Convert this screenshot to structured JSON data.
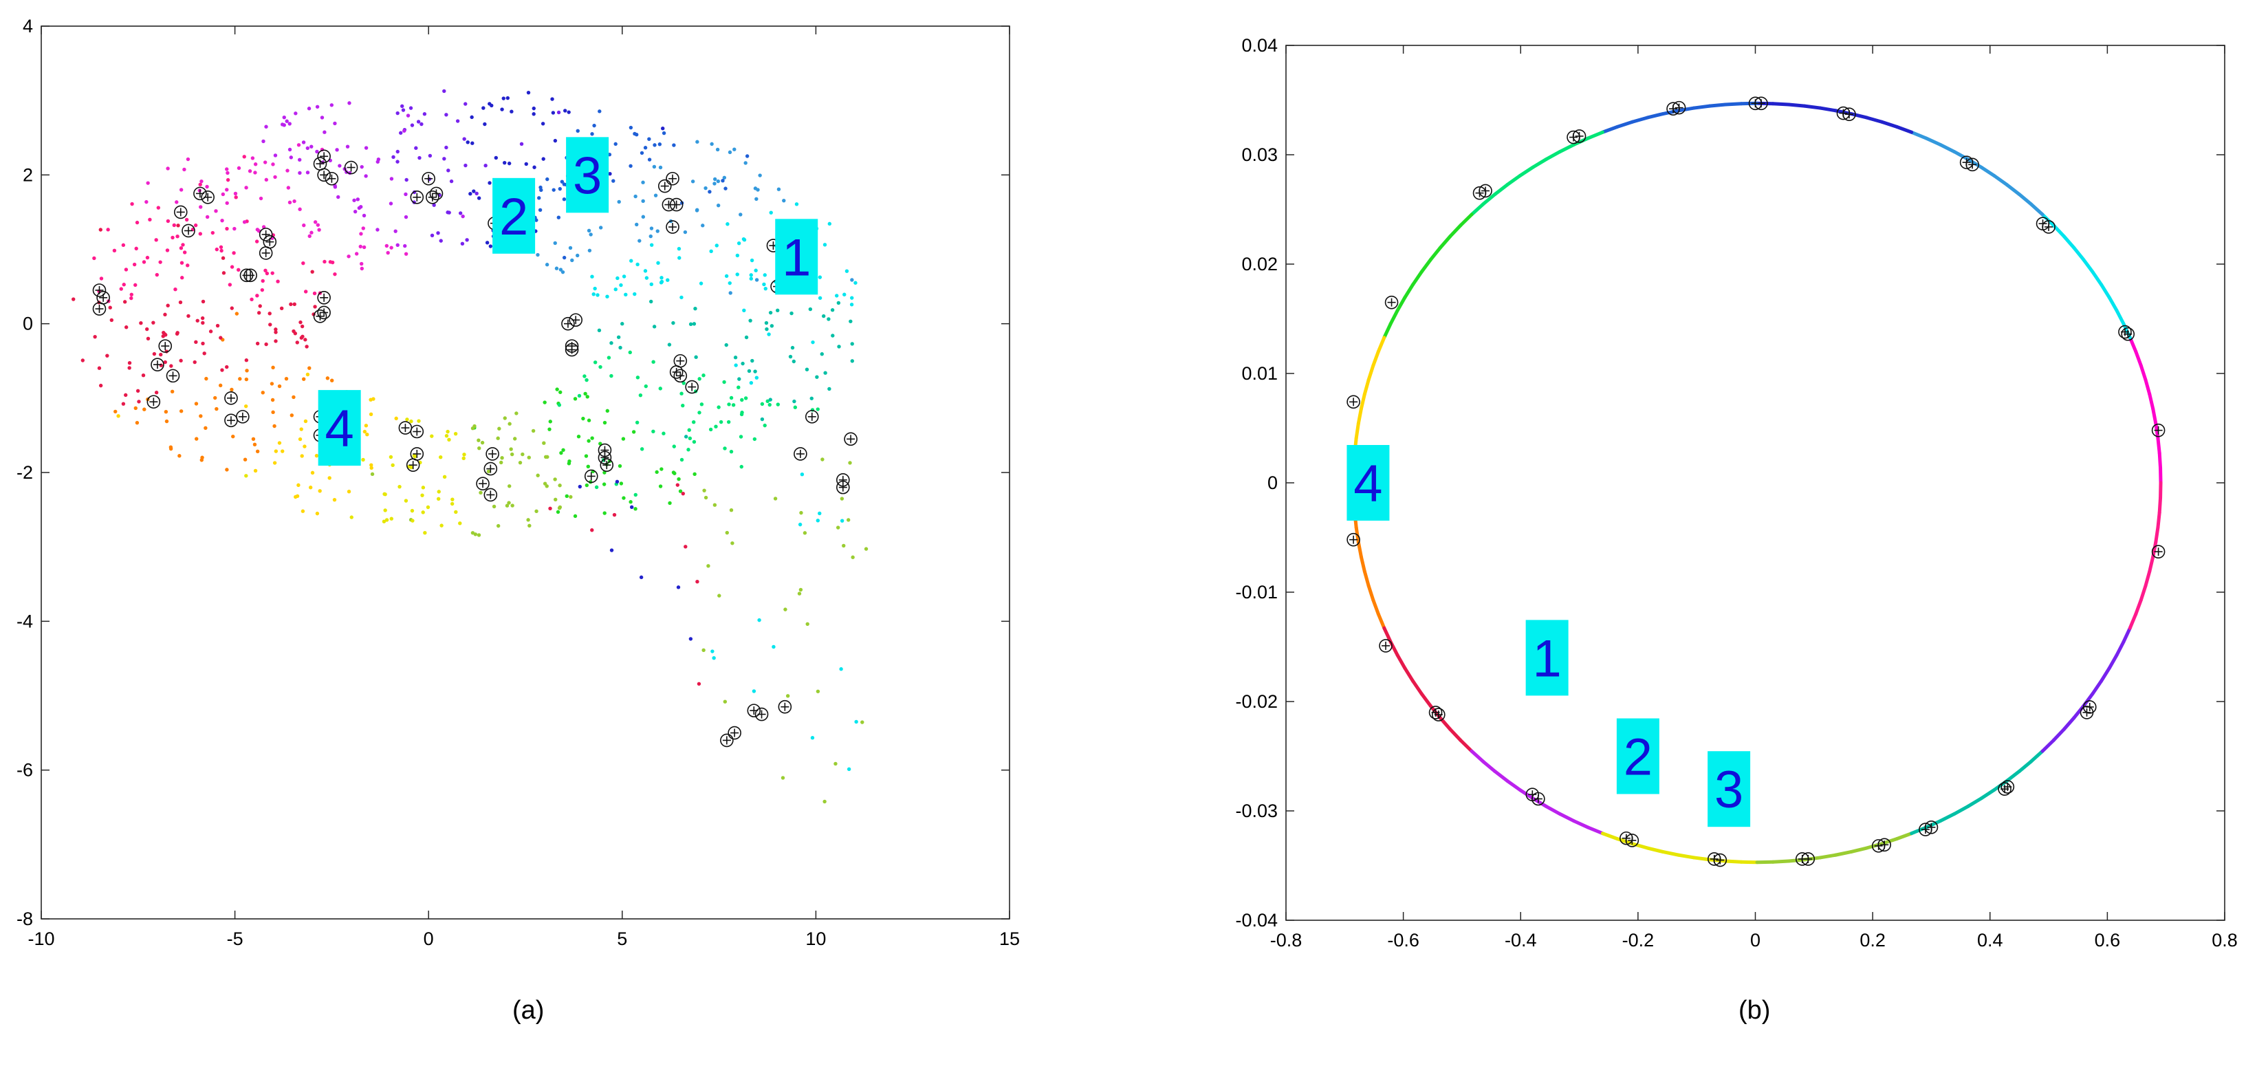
{
  "chart_data": [
    {
      "type": "scatter",
      "panel_label": "(a)",
      "title": "",
      "xlabel": "",
      "ylabel": "",
      "xlim": [
        -10,
        15
      ],
      "ylim": [
        -8,
        4
      ],
      "xticks": [
        "-10",
        "-5",
        "0",
        "5",
        "10",
        "15"
      ],
      "yticks": [
        "4",
        "2",
        "0",
        "-2",
        "-4",
        "-6",
        "-8"
      ],
      "grid": false,
      "annotations": [
        {
          "text": "1",
          "x": 9.5,
          "y": 0.9
        },
        {
          "text": "2",
          "x": 2.2,
          "y": 1.45
        },
        {
          "text": "3",
          "x": 4.1,
          "y": 2.0
        },
        {
          "text": "4",
          "x": -2.3,
          "y": -1.4
        }
      ],
      "marker_style": "circle-plus",
      "colors": [
        "#e6194b",
        "#ff8000",
        "#ffd700",
        "#e6e600",
        "#9acd32",
        "#22dd22",
        "#00e676",
        "#00bfa5",
        "#00e5ee",
        "#3399dd",
        "#1f5fd6",
        "#2222cc",
        "#7722ee",
        "#bb22ee",
        "#ee22cc",
        "#ff1a8c"
      ],
      "marked_points": [
        [
          -8.5,
          0.45
        ],
        [
          -8.4,
          0.35
        ],
        [
          -8.5,
          0.2
        ],
        [
          -7.0,
          -0.55
        ],
        [
          -7.1,
          -1.05
        ],
        [
          -6.8,
          -0.3
        ],
        [
          -6.6,
          -0.7
        ],
        [
          -6.4,
          1.5
        ],
        [
          -6.2,
          1.25
        ],
        [
          -5.9,
          1.75
        ],
        [
          -5.7,
          1.7
        ],
        [
          -5.1,
          -1.0
        ],
        [
          -5.1,
          -1.3
        ],
        [
          -4.8,
          -1.25
        ],
        [
          -4.7,
          0.65
        ],
        [
          -4.6,
          0.65
        ],
        [
          -4.2,
          1.2
        ],
        [
          -4.1,
          1.1
        ],
        [
          -4.2,
          0.95
        ],
        [
          -2.8,
          2.15
        ],
        [
          -2.7,
          2.25
        ],
        [
          -2.7,
          2.0
        ],
        [
          -2.5,
          1.95
        ],
        [
          -2.0,
          2.1
        ],
        [
          -2.7,
          0.35
        ],
        [
          -2.7,
          0.15
        ],
        [
          -2.8,
          0.1
        ],
        [
          -2.8,
          -1.25
        ],
        [
          -2.8,
          -1.5
        ],
        [
          -0.6,
          -1.4
        ],
        [
          -0.3,
          -1.45
        ],
        [
          -0.3,
          -1.75
        ],
        [
          -0.4,
          -1.9
        ],
        [
          0.0,
          1.95
        ],
        [
          0.1,
          1.7
        ],
        [
          0.2,
          1.75
        ],
        [
          -0.3,
          1.7
        ],
        [
          1.4,
          -2.15
        ],
        [
          1.6,
          -2.3
        ],
        [
          1.6,
          -1.95
        ],
        [
          1.65,
          -1.75
        ],
        [
          1.7,
          1.35
        ],
        [
          3.6,
          0.0
        ],
        [
          3.8,
          0.05
        ],
        [
          3.7,
          -0.3
        ],
        [
          3.7,
          -0.35
        ],
        [
          3.9,
          1.9
        ],
        [
          4.2,
          -2.05
        ],
        [
          4.55,
          -1.7
        ],
        [
          4.55,
          -1.8
        ],
        [
          4.6,
          -1.9
        ],
        [
          6.1,
          1.85
        ],
        [
          6.3,
          1.95
        ],
        [
          6.3,
          1.3
        ],
        [
          6.2,
          1.6
        ],
        [
          6.4,
          1.6
        ],
        [
          6.4,
          -0.65
        ],
        [
          6.5,
          -0.5
        ],
        [
          6.5,
          -0.7
        ],
        [
          6.8,
          -0.85
        ],
        [
          8.9,
          1.05
        ],
        [
          9.0,
          0.5
        ],
        [
          9.4,
          0.7
        ],
        [
          9.9,
          -1.25
        ],
        [
          9.6,
          -1.75
        ],
        [
          10.7,
          -2.1
        ],
        [
          10.7,
          -2.2
        ],
        [
          10.9,
          -1.55
        ],
        [
          7.7,
          -5.6
        ],
        [
          7.9,
          -5.5
        ],
        [
          8.4,
          -5.2
        ],
        [
          8.6,
          -5.25
        ],
        [
          9.2,
          -5.15
        ]
      ]
    },
    {
      "type": "scatter",
      "panel_label": "(b)",
      "title": "",
      "xlabel": "",
      "ylabel": "",
      "xlim": [
        -0.8,
        0.8
      ],
      "ylim": [
        -0.04,
        0.04
      ],
      "xticks": [
        "-0.8",
        "-0.6",
        "-0.4",
        "-0.2",
        "0",
        "0.2",
        "0.4",
        "0.6",
        "0.8"
      ],
      "yticks": [
        "0.04",
        "0.03",
        "0.02",
        "0.01",
        "0",
        "-0.01",
        "-0.02",
        "-0.03",
        "-0.04"
      ],
      "grid": false,
      "curve": {
        "shape": "ellipse",
        "center": [
          0.003,
          0.0
        ],
        "semi_x": 0.688,
        "semi_y": 0.0347
      },
      "curve_colors": [
        "#ff00cc",
        "#00e5ee",
        "#3399dd",
        "#2222cc",
        "#1f5fd6",
        "#00e676",
        "#22dd22",
        "#ffd700",
        "#ff8000",
        "#e6194b",
        "#bb22ee",
        "#e6e600",
        "#9acd32",
        "#00bfa5",
        "#7722ee",
        "#ff1a8c"
      ],
      "annotations": [
        {
          "text": "4",
          "x": -0.66,
          "y": 0.0
        },
        {
          "text": "1",
          "x": -0.355,
          "y": -0.016
        },
        {
          "text": "2",
          "x": -0.2,
          "y": -0.025
        },
        {
          "text": "3",
          "x": -0.045,
          "y": -0.028
        }
      ],
      "marker_style": "circle-plus",
      "marked_points": [
        [
          0.0,
          0.0347
        ],
        [
          0.01,
          0.0347
        ],
        [
          0.15,
          0.0338
        ],
        [
          0.16,
          0.0337
        ],
        [
          -0.14,
          0.0342
        ],
        [
          -0.13,
          0.0343
        ],
        [
          -0.3,
          0.0317
        ],
        [
          -0.31,
          0.0316
        ],
        [
          0.36,
          0.0293
        ],
        [
          0.37,
          0.0291
        ],
        [
          -0.47,
          0.0265
        ],
        [
          -0.46,
          0.0267
        ],
        [
          0.49,
          0.0237
        ],
        [
          0.5,
          0.0234
        ],
        [
          -0.62,
          0.0165
        ],
        [
          0.63,
          0.0138
        ],
        [
          0.635,
          0.0136
        ],
        [
          -0.685,
          0.0074
        ],
        [
          0.687,
          0.0048
        ],
        [
          -0.685,
          -0.0052
        ],
        [
          0.687,
          -0.0063
        ],
        [
          -0.63,
          -0.0149
        ],
        [
          0.57,
          -0.0205
        ],
        [
          0.565,
          -0.021
        ],
        [
          -0.545,
          -0.021
        ],
        [
          -0.54,
          -0.0212
        ],
        [
          0.43,
          -0.0278
        ],
        [
          0.425,
          -0.028
        ],
        [
          -0.38,
          -0.0285
        ],
        [
          -0.37,
          -0.0289
        ],
        [
          0.3,
          -0.0315
        ],
        [
          0.29,
          -0.0317
        ],
        [
          -0.22,
          -0.0325
        ],
        [
          -0.21,
          -0.0327
        ],
        [
          0.21,
          -0.0332
        ],
        [
          0.22,
          -0.0331
        ],
        [
          -0.07,
          -0.0344
        ],
        [
          -0.06,
          -0.0345
        ],
        [
          0.08,
          -0.0344
        ],
        [
          0.09,
          -0.0344
        ]
      ]
    }
  ]
}
